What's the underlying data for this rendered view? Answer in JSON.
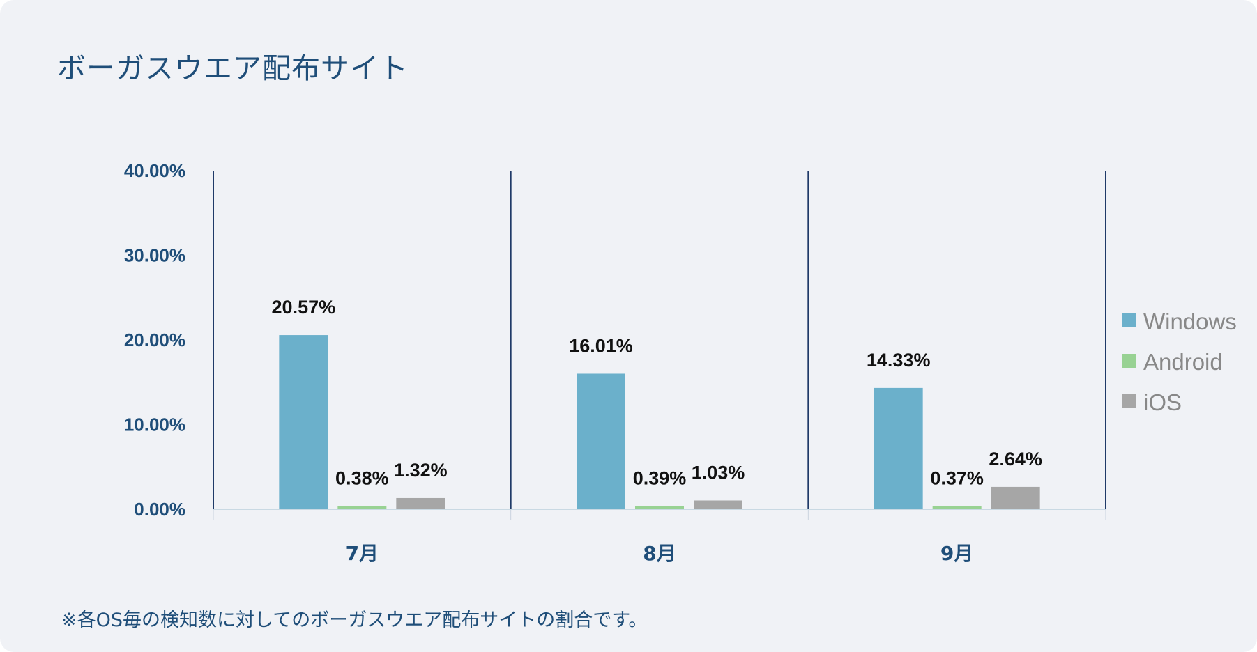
{
  "title": "ボーガスウエア配布サイト",
  "footnote": "※各OS毎の検知数に対してのボーガスウエア配布サイトの割合です。",
  "chart_data": {
    "type": "bar",
    "title": "ボーガスウエア配布サイト",
    "categories": [
      "7月",
      "8月",
      "9月"
    ],
    "series": [
      {
        "name": "Windows",
        "values": [
          20.57,
          16.01,
          14.33
        ],
        "labels": [
          "20.57%",
          "16.01%",
          "14.33%"
        ],
        "color": "#6bb0cb"
      },
      {
        "name": "Android",
        "values": [
          0.38,
          0.39,
          0.37
        ],
        "labels": [
          "0.38%",
          "0.39%",
          "0.37%"
        ],
        "color": "#98d293"
      },
      {
        "name": "iOS",
        "values": [
          1.32,
          1.03,
          2.64
        ],
        "labels": [
          "1.32%",
          "1.03%",
          "2.64%"
        ],
        "color": "#a6a6a6"
      }
    ],
    "ylim": [
      0,
      40
    ],
    "yticks": [
      "0.00%",
      "10.00%",
      "20.00%",
      "30.00%",
      "40.00%"
    ],
    "xlabel": "",
    "ylabel": "",
    "grid": false,
    "legend": "right"
  }
}
